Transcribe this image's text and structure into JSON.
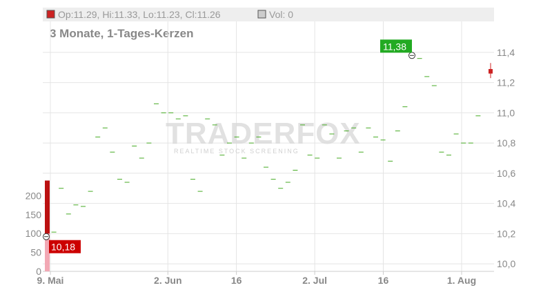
{
  "header": {
    "ohlc_label": "Op:11.29, Hi:11.33, Lo:11.23, Cl:11.26",
    "vol_label": "Vol: 0",
    "subtitle": "3 Monate, 1-Tages-Kerzen",
    "up_color": "#cc2222",
    "vol_color": "#cccccc"
  },
  "watermark": {
    "brand": "TRADERFOX",
    "tagline": "REALTIME STOCK SCREENING"
  },
  "chart_data": {
    "type": "candlestick",
    "title": "3 Monate, 1-Tages-Kerzen",
    "x_ticks": [
      {
        "label": "9. Mai",
        "date": "2024-05-09"
      },
      {
        "label": "2. Jun",
        "date": "2024-06-02"
      },
      {
        "label": "16",
        "date": "2024-06-16"
      },
      {
        "label": "2. Jul",
        "date": "2024-07-02"
      },
      {
        "label": "16",
        "date": "2024-07-16"
      },
      {
        "label": "1. Aug",
        "date": "2024-08-01"
      }
    ],
    "y_price_ticks": [
      "10,0",
      "10,2",
      "10,4",
      "10,6",
      "10,8",
      "11,0",
      "11,2",
      "11,4"
    ],
    "y_price_range": [
      9.95,
      11.45
    ],
    "y_volume_ticks": [
      "0",
      "50",
      "100",
      "150",
      "200"
    ],
    "y_volume_range": [
      0,
      250
    ],
    "price_color": "#44aa22",
    "last_candle": {
      "open": 11.29,
      "high": 11.33,
      "low": 11.23,
      "close": 11.26,
      "color": "#cc2222"
    },
    "low_marker": {
      "label": "10,18",
      "value": 10.18,
      "color": "#cc0000"
    },
    "high_marker": {
      "label": "11,38",
      "value": 11.38,
      "color": "#22aa22"
    },
    "volume_bars": [
      {
        "value": 240,
        "color": "#bb1111"
      },
      {
        "value": 100,
        "color": "#f2a8b4"
      }
    ],
    "prices": [
      10.18,
      10.21,
      10.5,
      10.33,
      10.39,
      10.38,
      10.48,
      10.84,
      10.9,
      10.74,
      10.56,
      10.54,
      10.78,
      10.7,
      10.8,
      11.06,
      11.0,
      11.0,
      10.96,
      10.98,
      10.56,
      10.48,
      10.96,
      10.92,
      10.72,
      10.8,
      10.84,
      10.7,
      10.8,
      10.84,
      10.64,
      10.56,
      10.5,
      10.54,
      10.62,
      10.92,
      10.72,
      10.7,
      10.92,
      10.86,
      10.7,
      10.88,
      10.9,
      10.74,
      10.9,
      10.84,
      10.82,
      10.68,
      10.88,
      11.04,
      11.38,
      11.36,
      11.24,
      11.18,
      10.74,
      10.72,
      10.86,
      10.8,
      10.8,
      10.98,
      11.26
    ]
  }
}
